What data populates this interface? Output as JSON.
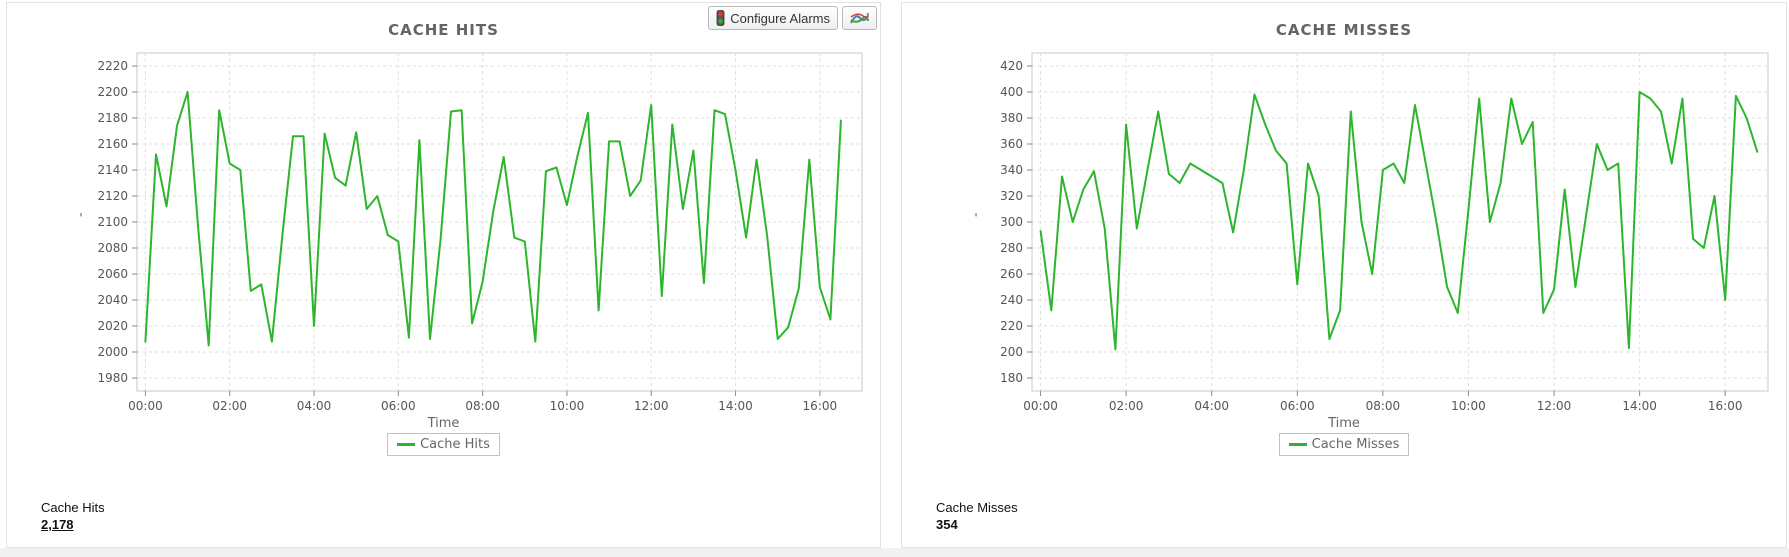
{
  "toolbar": {
    "configure_alarms_label": "Configure Alarms",
    "icons": {
      "traffic_light_red": "#d43a3a",
      "traffic_light_green": "#2fae2f",
      "chart_icon_blue": "#4a7ebb",
      "chart_icon_red": "#d04a4a",
      "chart_icon_green": "#3fa33f"
    }
  },
  "panels": [
    {
      "title": "CACHE HITS",
      "legend_label": "Cache Hits",
      "summary_label": "Cache Hits",
      "summary_value": "2,178"
    },
    {
      "title": "CACHE MISSES",
      "legend_label": "Cache Misses",
      "summary_label": "Cache Misses",
      "summary_value": "354"
    }
  ],
  "chart_data": [
    {
      "type": "line",
      "title": "CACHE HITS",
      "xlabel": "Time",
      "ylabel": "'",
      "legend": [
        "Cache Hits"
      ],
      "legend_position": "bottom",
      "grid": true,
      "line_color": "#2db52d",
      "x_tick_labels": [
        "00:00",
        "02:00",
        "04:00",
        "06:00",
        "08:00",
        "10:00",
        "12:00",
        "14:00",
        "16:00"
      ],
      "x_tick_minutes": [
        0,
        120,
        240,
        360,
        480,
        600,
        720,
        840,
        960
      ],
      "xlim_minutes": [
        -12,
        1020
      ],
      "yticks": [
        1980,
        2000,
        2020,
        2040,
        2060,
        2080,
        2100,
        2120,
        2140,
        2160,
        2180,
        2200,
        2220
      ],
      "ylim": [
        1970,
        2230
      ],
      "x_start_minute": 0,
      "x_step_minutes": 15,
      "series": [
        {
          "name": "Cache Hits",
          "values": [
            2008,
            2152,
            2112,
            2174,
            2200,
            2096,
            2005,
            2186,
            2145,
            2140,
            2047,
            2052,
            2008,
            2090,
            2166,
            2166,
            2020,
            2168,
            2134,
            2128,
            2169,
            2110,
            2120,
            2090,
            2085,
            2011,
            2163,
            2010,
            2086,
            2185,
            2186,
            2022,
            2054,
            2108,
            2150,
            2088,
            2085,
            2008,
            2139,
            2142,
            2113,
            2151,
            2184,
            2032,
            2162,
            2162,
            2120,
            2132,
            2190,
            2043,
            2175,
            2110,
            2155,
            2053,
            2186,
            2183,
            2140,
            2088,
            2148,
            2089,
            2010,
            2019,
            2049,
            2148,
            2050,
            2025,
            2178
          ]
        }
      ],
      "current_value": "2,178"
    },
    {
      "type": "line",
      "title": "CACHE MISSES",
      "xlabel": "Time",
      "ylabel": "'",
      "legend": [
        "Cache Misses"
      ],
      "legend_position": "bottom",
      "grid": true,
      "line_color": "#2db52d",
      "x_tick_labels": [
        "00:00",
        "02:00",
        "04:00",
        "06:00",
        "08:00",
        "10:00",
        "12:00",
        "14:00",
        "16:00"
      ],
      "x_tick_minutes": [
        0,
        120,
        240,
        360,
        480,
        600,
        720,
        840,
        960
      ],
      "xlim_minutes": [
        -12,
        1020
      ],
      "yticks": [
        180,
        200,
        220,
        240,
        260,
        280,
        300,
        320,
        340,
        360,
        380,
        400,
        420
      ],
      "ylim": [
        170,
        430
      ],
      "x_start_minute": 0,
      "x_step_minutes": 15,
      "series": [
        {
          "name": "Cache Misses",
          "values": [
            293,
            232,
            335,
            300,
            325,
            339,
            295,
            202,
            375,
            295,
            340,
            385,
            337,
            330,
            345,
            340,
            335,
            330,
            292,
            340,
            398,
            375,
            355,
            345,
            252,
            345,
            320,
            210,
            232,
            385,
            300,
            260,
            340,
            345,
            330,
            390,
            345,
            300,
            250,
            230,
            310,
            395,
            300,
            330,
            395,
            360,
            377,
            230,
            248,
            325,
            250,
            305,
            360,
            340,
            345,
            203,
            400,
            395,
            385,
            345,
            395,
            287,
            280,
            320,
            240,
            397,
            380,
            354
          ]
        }
      ],
      "current_value": "354"
    }
  ]
}
